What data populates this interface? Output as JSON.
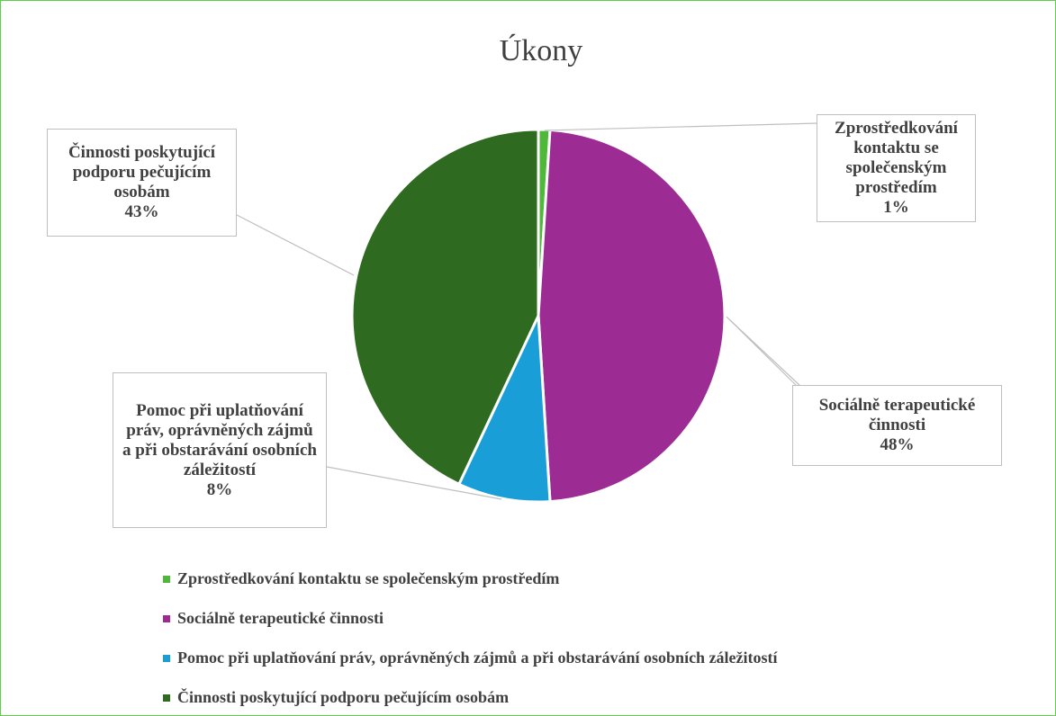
{
  "chart_data": {
    "type": "pie",
    "title": "Úkony",
    "categories": [
      "Zprostředkování kontaktu se společenským prostředím",
      "Sociálně terapeutické činnosti",
      "Pomoc při uplatňování práv, oprávněných zájmů a při obstarávání osobních záležitostí",
      "Činnosti poskytující podporu pečujícím osobám"
    ],
    "values": [
      1,
      48,
      8,
      43
    ],
    "value_labels": [
      "1%",
      "48%",
      "8%",
      "43%"
    ],
    "colors": [
      "#4fb83a",
      "#9c2b93",
      "#1a9ed8",
      "#2e6a1f"
    ]
  }
}
